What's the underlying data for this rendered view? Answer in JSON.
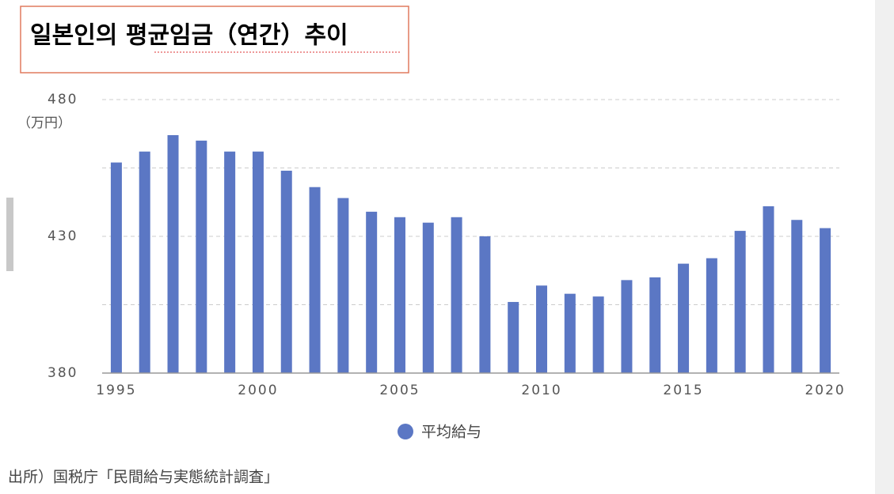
{
  "chart_data": {
    "type": "bar",
    "title": "일본인의   평균임금（연간）추이",
    "y_unit": "（万円）",
    "source": "出所）国税庁「民間給与実態統計調査」",
    "x": [
      1995,
      1996,
      1997,
      1998,
      1999,
      2000,
      2001,
      2002,
      2003,
      2004,
      2005,
      2006,
      2007,
      2008,
      2009,
      2010,
      2011,
      2012,
      2013,
      2014,
      2015,
      2016,
      2017,
      2018,
      2019,
      2020
    ],
    "series": [
      {
        "name": "平均給与",
        "color": "#5b77c4",
        "values": [
          457,
          461,
          467,
          465,
          461,
          461,
          454,
          448,
          444,
          439,
          437,
          435,
          437,
          430,
          406,
          412,
          409,
          408,
          414,
          415,
          420,
          422,
          432,
          441,
          436,
          433
        ]
      }
    ],
    "xlim": [
      1994.5,
      2020.5
    ],
    "xticks": [
      1995,
      2000,
      2005,
      2010,
      2015,
      2020
    ],
    "ylim": [
      380,
      480
    ],
    "yticks": [
      380,
      430,
      480
    ],
    "minor_gridlines": [
      405,
      455
    ],
    "grid": true,
    "legend": "bottom"
  }
}
